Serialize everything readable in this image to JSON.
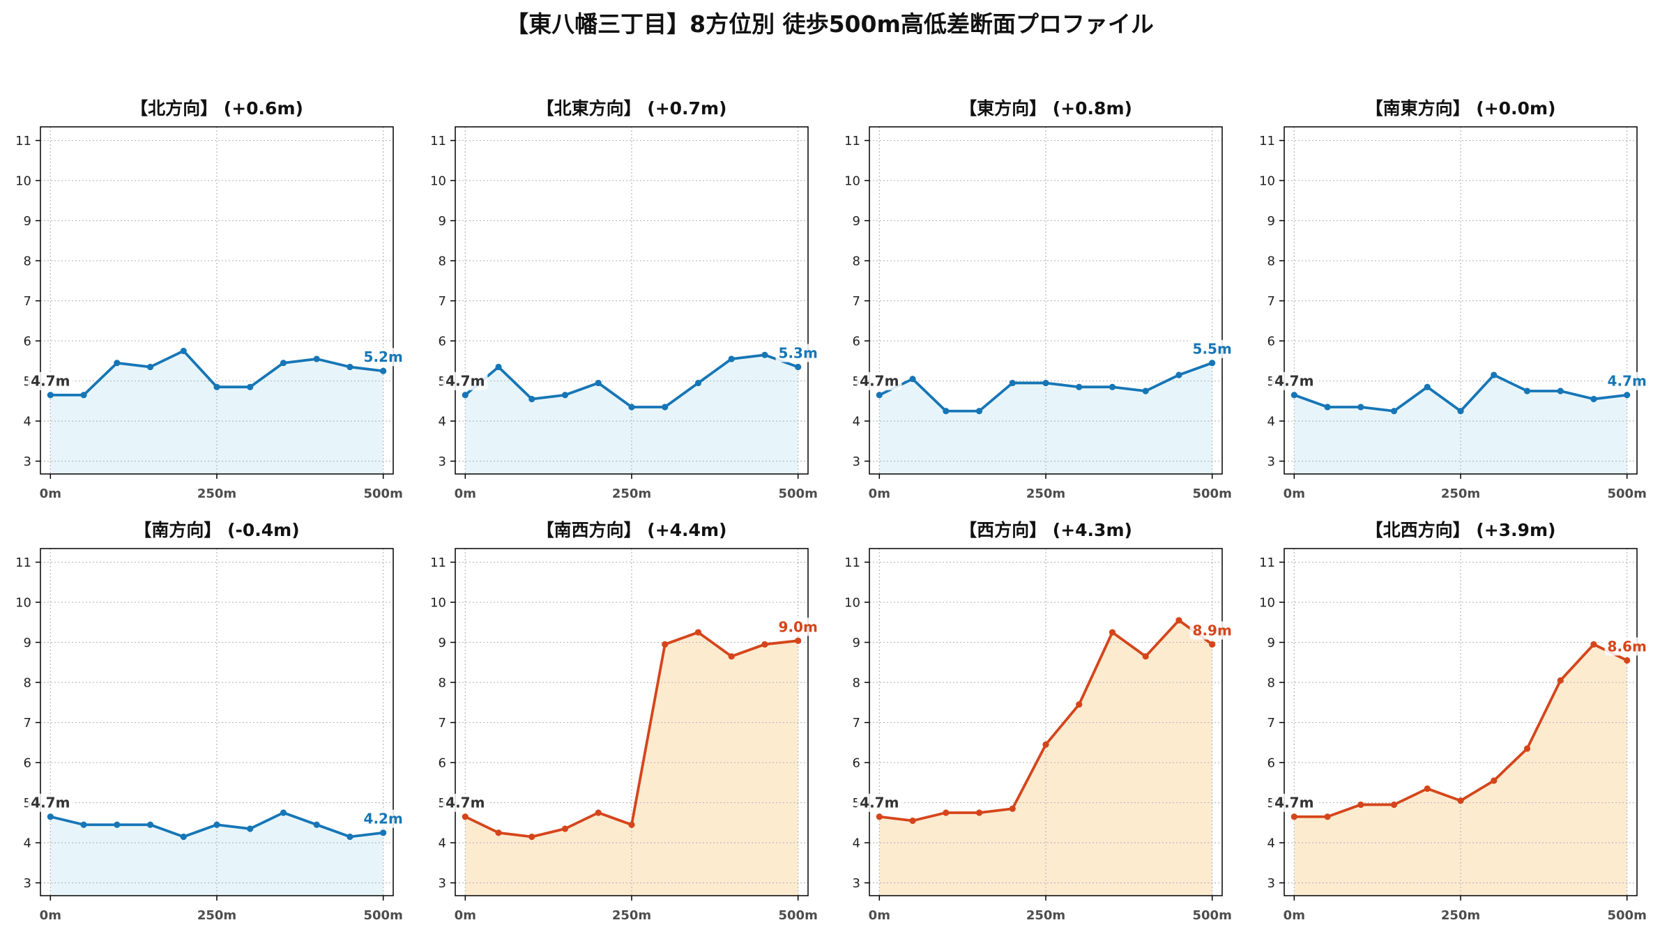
{
  "title": "【東八幡三丁目】8方位別 徒歩500m高低差断面プロファイル",
  "colors": {
    "start_label": "#333333",
    "grid": "#b8b8b8",
    "frame": "#000000"
  },
  "chart_data": [
    {
      "type": "area",
      "title": "【北方向】 (+0.6m)",
      "x": [
        0,
        50,
        100,
        150,
        200,
        250,
        300,
        350,
        400,
        450,
        500
      ],
      "series": [
        {
          "values": [
            4.65,
            4.65,
            5.45,
            5.35,
            5.75,
            4.85,
            4.85,
            5.45,
            5.55,
            5.35,
            5.25
          ]
        }
      ],
      "x_ticks": [
        0,
        250,
        500
      ],
      "x_tick_labels": [
        "0m",
        "250m",
        "500m"
      ],
      "y_ticks": [
        3,
        4,
        5,
        6,
        7,
        8,
        9,
        10,
        11
      ],
      "xlim": [
        -15,
        515
      ],
      "ylim": [
        2.68,
        11.34
      ],
      "grid": true,
      "start_label": "4.7m",
      "end_label": "5.2m",
      "line_color": "#1676b6",
      "fill_color": "#e7f5fb"
    },
    {
      "type": "area",
      "title": "【北東方向】 (+0.7m)",
      "x": [
        0,
        50,
        100,
        150,
        200,
        250,
        300,
        350,
        400,
        450,
        500
      ],
      "series": [
        {
          "values": [
            4.65,
            5.35,
            4.55,
            4.65,
            4.95,
            4.35,
            4.35,
            4.95,
            5.55,
            5.65,
            5.35
          ]
        }
      ],
      "x_ticks": [
        0,
        250,
        500
      ],
      "x_tick_labels": [
        "0m",
        "250m",
        "500m"
      ],
      "y_ticks": [
        3,
        4,
        5,
        6,
        7,
        8,
        9,
        10,
        11
      ],
      "xlim": [
        -15,
        515
      ],
      "ylim": [
        2.68,
        11.34
      ],
      "grid": true,
      "start_label": "4.7m",
      "end_label": "5.3m",
      "line_color": "#1676b6",
      "fill_color": "#e7f5fb"
    },
    {
      "type": "area",
      "title": "【東方向】 (+0.8m)",
      "x": [
        0,
        50,
        100,
        150,
        200,
        250,
        300,
        350,
        400,
        450,
        500
      ],
      "series": [
        {
          "values": [
            4.65,
            5.05,
            4.25,
            4.25,
            4.95,
            4.95,
            4.85,
            4.85,
            4.75,
            5.15,
            5.45
          ]
        }
      ],
      "x_ticks": [
        0,
        250,
        500
      ],
      "x_tick_labels": [
        "0m",
        "250m",
        "500m"
      ],
      "y_ticks": [
        3,
        4,
        5,
        6,
        7,
        8,
        9,
        10,
        11
      ],
      "xlim": [
        -15,
        515
      ],
      "ylim": [
        2.68,
        11.34
      ],
      "grid": true,
      "start_label": "4.7m",
      "end_label": "5.5m",
      "line_color": "#1676b6",
      "fill_color": "#e7f5fb"
    },
    {
      "type": "area",
      "title": "【南東方向】 (+0.0m)",
      "x": [
        0,
        50,
        100,
        150,
        200,
        250,
        300,
        350,
        400,
        450,
        500
      ],
      "series": [
        {
          "values": [
            4.65,
            4.35,
            4.35,
            4.25,
            4.85,
            4.25,
            5.15,
            4.75,
            4.75,
            4.55,
            4.65
          ]
        }
      ],
      "x_ticks": [
        0,
        250,
        500
      ],
      "x_tick_labels": [
        "0m",
        "250m",
        "500m"
      ],
      "y_ticks": [
        3,
        4,
        5,
        6,
        7,
        8,
        9,
        10,
        11
      ],
      "xlim": [
        -15,
        515
      ],
      "ylim": [
        2.68,
        11.34
      ],
      "grid": true,
      "start_label": "4.7m",
      "end_label": "4.7m",
      "line_color": "#1676b6",
      "fill_color": "#e7f5fb"
    },
    {
      "type": "area",
      "title": "【南方向】 (-0.4m)",
      "x": [
        0,
        50,
        100,
        150,
        200,
        250,
        300,
        350,
        400,
        450,
        500
      ],
      "series": [
        {
          "values": [
            4.65,
            4.45,
            4.45,
            4.45,
            4.15,
            4.45,
            4.35,
            4.75,
            4.45,
            4.15,
            4.25
          ]
        }
      ],
      "x_ticks": [
        0,
        250,
        500
      ],
      "x_tick_labels": [
        "0m",
        "250m",
        "500m"
      ],
      "y_ticks": [
        3,
        4,
        5,
        6,
        7,
        8,
        9,
        10,
        11
      ],
      "xlim": [
        -15,
        515
      ],
      "ylim": [
        2.68,
        11.34
      ],
      "grid": true,
      "start_label": "4.7m",
      "end_label": "4.2m",
      "line_color": "#1676b6",
      "fill_color": "#e7f5fb"
    },
    {
      "type": "area",
      "title": "【南西方向】 (+4.4m)",
      "x": [
        0,
        50,
        100,
        150,
        200,
        250,
        300,
        350,
        400,
        450,
        500
      ],
      "series": [
        {
          "values": [
            4.65,
            4.25,
            4.15,
            4.35,
            4.75,
            4.45,
            8.95,
            9.25,
            8.65,
            8.95,
            9.04
          ]
        }
      ],
      "x_ticks": [
        0,
        250,
        500
      ],
      "x_tick_labels": [
        "0m",
        "250m",
        "500m"
      ],
      "y_ticks": [
        3,
        4,
        5,
        6,
        7,
        8,
        9,
        10,
        11
      ],
      "xlim": [
        -15,
        515
      ],
      "ylim": [
        2.68,
        11.34
      ],
      "grid": true,
      "start_label": "4.7m",
      "end_label": "9.0m",
      "line_color": "#d5451b",
      "fill_color": "#fdebd0"
    },
    {
      "type": "area",
      "title": "【西方向】 (+4.3m)",
      "x": [
        0,
        50,
        100,
        150,
        200,
        250,
        300,
        350,
        400,
        450,
        500
      ],
      "series": [
        {
          "values": [
            4.65,
            4.55,
            4.75,
            4.75,
            4.85,
            6.45,
            7.45,
            9.25,
            8.65,
            9.55,
            8.95
          ]
        }
      ],
      "x_ticks": [
        0,
        250,
        500
      ],
      "x_tick_labels": [
        "0m",
        "250m",
        "500m"
      ],
      "y_ticks": [
        3,
        4,
        5,
        6,
        7,
        8,
        9,
        10,
        11
      ],
      "xlim": [
        -15,
        515
      ],
      "ylim": [
        2.68,
        11.34
      ],
      "grid": true,
      "start_label": "4.7m",
      "end_label": "8.9m",
      "line_color": "#d5451b",
      "fill_color": "#fdebd0"
    },
    {
      "type": "area",
      "title": "【北西方向】 (+3.9m)",
      "x": [
        0,
        50,
        100,
        150,
        200,
        250,
        300,
        350,
        400,
        450,
        500
      ],
      "series": [
        {
          "values": [
            4.65,
            4.65,
            4.95,
            4.95,
            5.35,
            5.05,
            5.55,
            6.35,
            8.05,
            8.95,
            8.55
          ]
        }
      ],
      "x_ticks": [
        0,
        250,
        500
      ],
      "x_tick_labels": [
        "0m",
        "250m",
        "500m"
      ],
      "y_ticks": [
        3,
        4,
        5,
        6,
        7,
        8,
        9,
        10,
        11
      ],
      "xlim": [
        -15,
        515
      ],
      "ylim": [
        2.68,
        11.34
      ],
      "grid": true,
      "start_label": "4.7m",
      "end_label": "8.6m",
      "line_color": "#d5451b",
      "fill_color": "#fdebd0"
    }
  ]
}
